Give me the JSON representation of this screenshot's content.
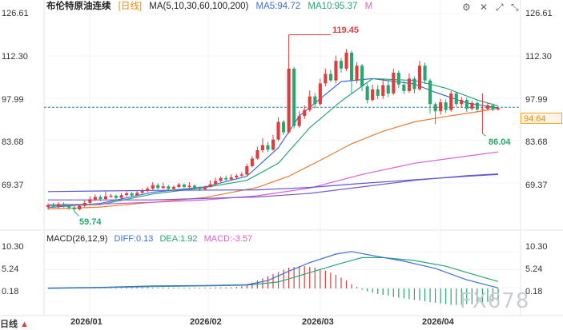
{
  "header": {
    "instrument": "布伦特原油连续",
    "period_tag": "[日线]",
    "ma_params": "MA(5,10,30,60,100,200)",
    "ma5": "MA5:94.72",
    "ma10": "MA10:95.37",
    "more": "M"
  },
  "macd_header": {
    "params": "MACD(26,12,9)",
    "diff": "DIFF:0.13",
    "dea": "DEA:1.92",
    "macd": "MACD:-3.57"
  },
  "toolbar": {
    "settings_icon": "gear-icon",
    "close_icon": "close-icon",
    "expand_icon": "expand-icon",
    "collapse_icon": "collapse-icon"
  },
  "price_axis": [
    "126.61",
    "112.30",
    "97.99",
    "83.68",
    "69.37"
  ],
  "macd_axis": [
    "10.30",
    "5.24",
    "0.18"
  ],
  "current_price_label": "94.64",
  "annotations": {
    "high": "119.45",
    "low": "59.74",
    "recent_low": "86.04"
  },
  "x_labels": [
    "2026/01",
    "2026/02",
    "2026/03",
    "2026/04"
  ],
  "timeframe_selector": {
    "label": "日线",
    "arrow_icon": "triangle-up-icon"
  },
  "watermark": "FX678",
  "colors": {
    "up": "#e23b3b",
    "down": "#2aa56f",
    "ma5": "#3a6fd8",
    "ma10": "#29a37a",
    "ma30": "#e87a2c",
    "ma60": "#d75fd6",
    "ma100": "#7b59c8",
    "ma200": "#5a58d6",
    "accent": "#e58a00"
  },
  "chart_data": {
    "type": "candlestick",
    "title": "布伦特原油连续 日线",
    "price_range": [
      55.0,
      128.5
    ],
    "categories": [
      "2026/01",
      "2026/02",
      "2026/03",
      "2026/04"
    ],
    "candles": [
      [
        61.2,
        61.8,
        62.4,
        60.4
      ],
      [
        61.8,
        61.3,
        62.6,
        60.9
      ],
      [
        61.3,
        62.2,
        62.9,
        60.8
      ],
      [
        62.2,
        61.5,
        62.8,
        61.0
      ],
      [
        61.5,
        61.0,
        62.1,
        60.2
      ],
      [
        61.0,
        60.4,
        61.6,
        59.74
      ],
      [
        60.4,
        61.6,
        62.0,
        60.0
      ],
      [
        61.6,
        62.6,
        63.4,
        61.2
      ],
      [
        62.6,
        63.8,
        64.8,
        62.3
      ],
      [
        63.8,
        64.6,
        65.4,
        63.2
      ],
      [
        64.6,
        63.9,
        65.2,
        63.2
      ],
      [
        63.9,
        64.8,
        66.4,
        63.6
      ],
      [
        64.8,
        65.0,
        65.6,
        64.2
      ],
      [
        65.0,
        64.3,
        65.4,
        63.8
      ],
      [
        64.3,
        65.2,
        65.9,
        63.9
      ],
      [
        65.2,
        65.8,
        66.5,
        64.8
      ],
      [
        65.8,
        65.1,
        66.3,
        64.6
      ],
      [
        65.1,
        66.0,
        66.7,
        64.9
      ],
      [
        66.0,
        66.6,
        67.4,
        65.7
      ],
      [
        66.6,
        67.4,
        68.1,
        66.2
      ],
      [
        67.4,
        68.6,
        69.6,
        67.0
      ],
      [
        68.6,
        67.6,
        69.2,
        67.1
      ],
      [
        67.6,
        68.2,
        69.5,
        67.4
      ],
      [
        68.2,
        67.3,
        68.7,
        66.8
      ],
      [
        67.3,
        68.0,
        68.5,
        66.9
      ],
      [
        68.0,
        68.8,
        69.4,
        67.6
      ],
      [
        68.8,
        68.0,
        69.2,
        67.5
      ],
      [
        68.0,
        68.4,
        69.6,
        67.6
      ],
      [
        68.4,
        67.8,
        68.9,
        67.1
      ],
      [
        67.8,
        67.2,
        68.2,
        66.6
      ],
      [
        67.2,
        68.0,
        68.5,
        66.9
      ],
      [
        68.0,
        68.9,
        70.2,
        67.8
      ],
      [
        68.9,
        70.0,
        71.1,
        68.6
      ],
      [
        70.0,
        71.0,
        71.6,
        69.6
      ],
      [
        71.0,
        70.5,
        71.8,
        70.0
      ],
      [
        70.5,
        71.2,
        72.2,
        70.2
      ],
      [
        71.2,
        71.8,
        72.4,
        70.8
      ],
      [
        71.8,
        72.2,
        73.0,
        71.4
      ],
      [
        72.2,
        75.0,
        75.8,
        71.9
      ],
      [
        75.0,
        77.6,
        78.4,
        74.6
      ],
      [
        77.6,
        80.4,
        81.6,
        77.2
      ],
      [
        80.4,
        82.1,
        84.5,
        79.6
      ],
      [
        82.1,
        80.6,
        83.2,
        79.8
      ],
      [
        80.6,
        84.0,
        85.6,
        80.2
      ],
      [
        84.0,
        90.0,
        91.6,
        83.4
      ],
      [
        90.0,
        86.5,
        90.6,
        85.6
      ],
      [
        86.5,
        108.0,
        119.45,
        86.0
      ],
      [
        108.0,
        88.6,
        108.6,
        87.8
      ],
      [
        88.6,
        92.0,
        93.6,
        88.0
      ],
      [
        92.0,
        94.0,
        95.6,
        91.0
      ],
      [
        94.0,
        98.6,
        100.6,
        93.4
      ],
      [
        98.6,
        96.0,
        99.8,
        94.6
      ],
      [
        96.0,
        103.0,
        104.6,
        95.4
      ],
      [
        103.0,
        106.2,
        108.0,
        102.0
      ],
      [
        106.2,
        104.0,
        107.6,
        103.4
      ],
      [
        104.0,
        110.6,
        112.4,
        103.0
      ],
      [
        110.6,
        108.0,
        111.6,
        106.6
      ],
      [
        108.0,
        113.4,
        114.6,
        107.2
      ],
      [
        113.4,
        104.0,
        114.0,
        99.6
      ],
      [
        104.0,
        109.0,
        110.2,
        103.0
      ],
      [
        109.0,
        102.0,
        109.6,
        100.4
      ],
      [
        102.0,
        97.4,
        103.0,
        96.2
      ],
      [
        97.4,
        101.0,
        102.6,
        96.8
      ],
      [
        101.0,
        98.8,
        102.4,
        97.6
      ],
      [
        98.8,
        102.4,
        104.6,
        97.8
      ],
      [
        102.4,
        99.6,
        104.0,
        98.4
      ],
      [
        99.6,
        106.6,
        108.0,
        99.0
      ],
      [
        106.6,
        102.6,
        107.4,
        101.4
      ],
      [
        102.6,
        100.4,
        103.8,
        99.4
      ],
      [
        100.4,
        104.6,
        106.4,
        99.8
      ],
      [
        104.6,
        101.0,
        105.4,
        99.6
      ],
      [
        101.0,
        109.0,
        110.6,
        100.6
      ],
      [
        109.0,
        104.0,
        110.0,
        102.8
      ],
      [
        104.0,
        96.0,
        104.6,
        92.8
      ],
      [
        96.0,
        93.6,
        96.6,
        89.2
      ],
      [
        93.6,
        96.6,
        97.8,
        92.4
      ],
      [
        96.6,
        94.0,
        97.6,
        93.0
      ],
      [
        94.0,
        99.6,
        100.4,
        93.4
      ],
      [
        99.6,
        96.0,
        100.0,
        95.2
      ],
      [
        96.0,
        97.4,
        98.4,
        94.8
      ],
      [
        97.4,
        94.4,
        98.2,
        93.4
      ],
      [
        94.4,
        96.4,
        97.2,
        93.8
      ],
      [
        96.4,
        94.2,
        97.0,
        93.4
      ],
      [
        94.2,
        94.4,
        99.6,
        86.04
      ],
      [
        94.4,
        95.6,
        96.4,
        93.8
      ],
      [
        95.6,
        94.2,
        96.2,
        93.6
      ],
      [
        94.2,
        94.64,
        95.2,
        93.8
      ]
    ],
    "ma_series": [
      {
        "name": "MA5",
        "color": "#3a6fd8",
        "points": [
          [
            0,
            61.0
          ],
          [
            10,
            62.4
          ],
          [
            20,
            66.2
          ],
          [
            30,
            68.0
          ],
          [
            38,
            71.6
          ],
          [
            44,
            81.2
          ],
          [
            48,
            92.0
          ],
          [
            56,
            103.6
          ],
          [
            62,
            104.6
          ],
          [
            70,
            102.8
          ],
          [
            74,
            100.0
          ],
          [
            80,
            96.4
          ],
          [
            86,
            94.72
          ]
        ]
      },
      {
        "name": "MA10",
        "color": "#29a37a",
        "points": [
          [
            0,
            61.6
          ],
          [
            10,
            62.0
          ],
          [
            20,
            65.6
          ],
          [
            30,
            67.8
          ],
          [
            38,
            70.2
          ],
          [
            44,
            76.0
          ],
          [
            50,
            88.0
          ],
          [
            56,
            97.0
          ],
          [
            62,
            104.6
          ],
          [
            70,
            104.0
          ],
          [
            76,
            101.4
          ],
          [
            82,
            97.4
          ],
          [
            86,
            95.37
          ]
        ]
      },
      {
        "name": "MA30",
        "color": "#e87a2c",
        "points": [
          [
            0,
            60.5
          ],
          [
            10,
            61.2
          ],
          [
            20,
            62.8
          ],
          [
            30,
            64.4
          ],
          [
            40,
            67.8
          ],
          [
            46,
            71.6
          ],
          [
            52,
            77.0
          ],
          [
            58,
            82.6
          ],
          [
            64,
            86.8
          ],
          [
            70,
            90.0
          ],
          [
            76,
            91.8
          ],
          [
            82,
            93.4
          ],
          [
            86,
            94.6
          ]
        ]
      },
      {
        "name": "MA60",
        "color": "#d75fd6",
        "points": [
          [
            0,
            62.0
          ],
          [
            10,
            62.2
          ],
          [
            20,
            62.8
          ],
          [
            30,
            63.6
          ],
          [
            40,
            65.0
          ],
          [
            50,
            67.6
          ],
          [
            60,
            72.2
          ],
          [
            70,
            76.0
          ],
          [
            80,
            78.4
          ],
          [
            86,
            79.8
          ]
        ]
      },
      {
        "name": "MA100",
        "color": "#7b59c8",
        "points": [
          [
            0,
            63.6
          ],
          [
            20,
            63.6
          ],
          [
            40,
            64.6
          ],
          [
            50,
            65.8
          ],
          [
            60,
            68.0
          ],
          [
            70,
            70.2
          ],
          [
            80,
            71.8
          ],
          [
            86,
            72.4
          ]
        ]
      },
      {
        "name": "MA200",
        "color": "#5a58d6",
        "points": [
          [
            0,
            66.4
          ],
          [
            20,
            66.8
          ],
          [
            40,
            67.0
          ],
          [
            50,
            67.8
          ],
          [
            60,
            69.2
          ],
          [
            70,
            70.4
          ],
          [
            80,
            71.6
          ],
          [
            86,
            72.2
          ]
        ]
      }
    ],
    "macd": {
      "range": [
        -6.5,
        12.5
      ],
      "diff_color": "#3a6fd8",
      "dea_color": "#29a37a",
      "diff": [
        [
          0,
          0.1
        ],
        [
          10,
          0.3
        ],
        [
          20,
          0.7
        ],
        [
          30,
          0.8
        ],
        [
          38,
          1.0
        ],
        [
          42,
          2.2
        ],
        [
          46,
          4.8
        ],
        [
          50,
          7.2
        ],
        [
          55,
          9.6
        ],
        [
          58,
          10.3
        ],
        [
          62,
          9.2
        ],
        [
          68,
          7.6
        ],
        [
          74,
          5.6
        ],
        [
          80,
          2.4
        ],
        [
          86,
          0.13
        ]
      ],
      "dea": [
        [
          0,
          0.0
        ],
        [
          10,
          0.2
        ],
        [
          20,
          0.5
        ],
        [
          30,
          0.7
        ],
        [
          38,
          0.9
        ],
        [
          44,
          1.8
        ],
        [
          50,
          4.4
        ],
        [
          56,
          7.0
        ],
        [
          60,
          8.6
        ],
        [
          64,
          8.6
        ],
        [
          70,
          7.8
        ],
        [
          76,
          6.2
        ],
        [
          82,
          3.6
        ],
        [
          86,
          1.92
        ]
      ],
      "hist": [
        0.1,
        0.1,
        0.1,
        0.2,
        0.2,
        0.2,
        0.2,
        0.2,
        0.3,
        0.3,
        0.3,
        0.3,
        0.3,
        0.3,
        0.4,
        0.3,
        0.4,
        0.4,
        0.3,
        0.3,
        0.2,
        0.2,
        0.2,
        0.2,
        0.2,
        0.2,
        0.2,
        0.2,
        0.2,
        0.2,
        0.2,
        0.2,
        0.3,
        0.3,
        0.3,
        0.3,
        0.4,
        0.6,
        1.0,
        1.6,
        2.2,
        2.8,
        3.4,
        4.0,
        4.6,
        5.2,
        5.8,
        6.0,
        6.2,
        6.2,
        6.0,
        5.8,
        5.4,
        5.0,
        4.4,
        3.8,
        3.0,
        2.2,
        1.2,
        0.4,
        -0.4,
        -0.8,
        -1.2,
        -1.6,
        -1.8,
        -2.0,
        -2.4,
        -2.6,
        -2.8,
        -3.0,
        -3.2,
        -3.4,
        -3.6,
        -3.8,
        -4.0,
        -4.2,
        -4.4,
        -4.6,
        -4.6,
        -4.6,
        -4.4,
        -4.4,
        -4.2,
        -4.0,
        -3.8,
        -3.6,
        -3.57
      ]
    }
  }
}
